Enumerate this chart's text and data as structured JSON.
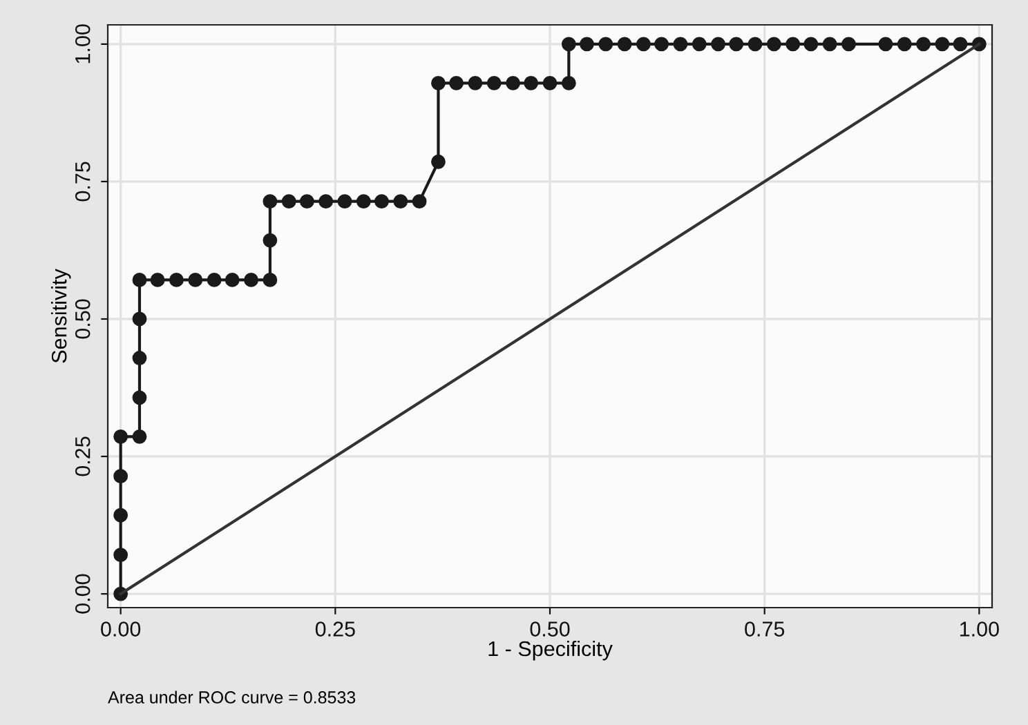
{
  "chart_data": {
    "type": "line",
    "xlabel": "1 - Specificity",
    "ylabel": "Sensitivity",
    "annotations": [
      "Area under ROC curve = 0.8533"
    ],
    "series": [
      {
        "color": "#1a1a1a",
        "marker": "circle",
        "x": [
          0,
          0,
          0,
          0,
          0,
          0.022,
          0.022,
          0.022,
          0.022,
          0.022,
          0.043,
          0.065,
          0.087,
          0.109,
          0.13,
          0.152,
          0.174,
          0.174,
          0.174,
          0.196,
          0.217,
          0.239,
          0.261,
          0.283,
          0.304,
          0.326,
          0.348,
          0.37,
          0.37,
          0.391,
          0.413,
          0.435,
          0.457,
          0.478,
          0.5,
          0.522,
          0.522,
          0.543,
          0.565,
          0.587,
          0.609,
          0.63,
          0.652,
          0.674,
          0.696,
          0.717,
          0.739,
          0.761,
          0.783,
          0.804,
          0.826,
          0.848,
          0.891,
          0.913,
          0.935,
          0.957,
          0.978,
          1
        ],
        "values": [
          0,
          0.071,
          0.143,
          0.214,
          0.286,
          0.286,
          0.357,
          0.429,
          0.5,
          0.571,
          0.571,
          0.571,
          0.571,
          0.571,
          0.571,
          0.571,
          0.571,
          0.643,
          0.714,
          0.714,
          0.714,
          0.714,
          0.714,
          0.714,
          0.714,
          0.714,
          0.714,
          0.786,
          0.929,
          0.929,
          0.929,
          0.929,
          0.929,
          0.929,
          0.929,
          0.929,
          1,
          1,
          1,
          1,
          1,
          1,
          1,
          1,
          1,
          1,
          1,
          1,
          1,
          1,
          1,
          1,
          1,
          1,
          1,
          1,
          1,
          1
        ]
      },
      {
        "color": "#333333",
        "marker": "none",
        "x": [
          0,
          1
        ],
        "values": [
          0,
          1
        ]
      }
    ],
    "xlim": [
      -0.015,
      1.015
    ],
    "ylim": [
      -0.025,
      1.035
    ],
    "xticks": [
      {
        "value": 0,
        "label": "0.00"
      },
      {
        "value": 0.25,
        "label": "0.25"
      },
      {
        "value": 0.5,
        "label": "0.50"
      },
      {
        "value": 0.75,
        "label": "0.75"
      },
      {
        "value": 1,
        "label": "1.00"
      }
    ],
    "yticks": [
      {
        "value": 0,
        "label": "0.00"
      },
      {
        "value": 0.25,
        "label": "0.25"
      },
      {
        "value": 0.5,
        "label": "0.50"
      },
      {
        "value": 0.75,
        "label": "0.75"
      },
      {
        "value": 1,
        "label": "1.00"
      }
    ],
    "grid": true,
    "legend": false,
    "line_style": "solid"
  }
}
